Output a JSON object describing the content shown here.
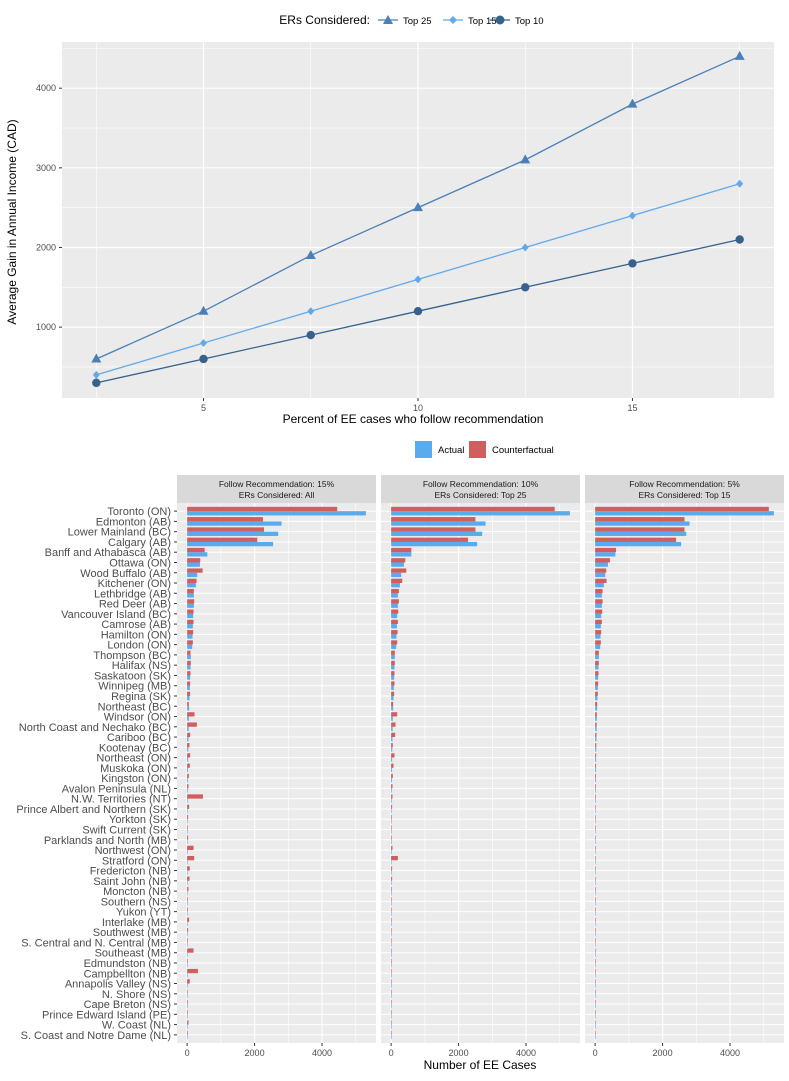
{
  "line_chart": {
    "legend_title": "ERs Considered:",
    "xlabel": "Percent of EE cases who follow recommendation",
    "ylabel": "Average Gain in Annual Income (CAD)"
  },
  "bar_chart": {
    "legend": [
      "Actual",
      "Counterfactual"
    ],
    "xlabel": "Number of EE Cases",
    "panels": [
      {
        "line1": "Follow Recommendation: 15%",
        "line2": "ERs Considered: All"
      },
      {
        "line1": "Follow Recommendation: 10%",
        "line2": "ERs Considered: Top 25"
      },
      {
        "line1": "Follow Recommendation: 5%",
        "line2": "ERs Considered: Top 15"
      }
    ]
  },
  "colors": {
    "top25": "#4a7fb8",
    "top15": "#63a9ea",
    "top10": "#37628c",
    "actual": "#5aabee",
    "counterfactual": "#d05e5e",
    "panel_bg": "#ebebeb",
    "strip_bg": "#d9d9d9"
  },
  "chart_data": [
    {
      "type": "line",
      "title": "",
      "xlabel": "Percent of EE cases who follow recommendation",
      "ylabel": "Average Gain in Annual Income (CAD)",
      "x": [
        2.5,
        5,
        7.5,
        10,
        12.5,
        15,
        17.5
      ],
      "xticks": [
        5,
        10,
        15
      ],
      "yticks": [
        1000,
        2000,
        3000,
        4000
      ],
      "xlim": [
        1.7,
        18.3
      ],
      "ylim": [
        110,
        4580
      ],
      "legend_title": "ERs Considered:",
      "series": [
        {
          "name": "Top 25",
          "marker": "triangle",
          "color": "#4a7fb8",
          "values": [
            600,
            1200,
            1900,
            2500,
            3100,
            3800,
            4400
          ]
        },
        {
          "name": "Top 15",
          "marker": "diamond",
          "color": "#63a9ea",
          "values": [
            400,
            800,
            1200,
            1600,
            2000,
            2400,
            2800
          ]
        },
        {
          "name": "Top 10",
          "marker": "circle",
          "color": "#37628c",
          "values": [
            300,
            600,
            900,
            1200,
            1500,
            1800,
            2100
          ]
        }
      ]
    },
    {
      "type": "bar",
      "orientation": "horizontal",
      "xlabel": "Number of EE Cases",
      "xticks": [
        0,
        2000,
        4000
      ],
      "xlim": [
        -300,
        5600
      ],
      "series_names": [
        "Actual",
        "Counterfactual"
      ],
      "categories": [
        "Toronto (ON)",
        "Edmonton (AB)",
        "Lower Mainland (BC)",
        "Calgary (AB)",
        "Banff and Athabasca (AB)",
        "Ottawa (ON)",
        "Wood Buffalo (AB)",
        "Kitchener (ON)",
        "Lethbridge (AB)",
        "Red Deer (AB)",
        "Vancouver Island (BC)",
        "Camrose (AB)",
        "Hamilton (ON)",
        "London (ON)",
        "Thompson (BC)",
        "Halifax (NS)",
        "Saskatoon (SK)",
        "Winnipeg (MB)",
        "Regina (SK)",
        "Northeast (BC)",
        "Windsor (ON)",
        "North Coast and Nechako (BC)",
        "Cariboo (BC)",
        "Kootenay (BC)",
        "Northeast (ON)",
        "Muskoka (ON)",
        "Kingston (ON)",
        "Avalon Peninsula (NL)",
        "N.W. Territories (NT)",
        "Prince Albert and Northern (SK)",
        "Yorkton (SK)",
        "Swift Current (SK)",
        "Parklands and North (MB)",
        "Northwest (ON)",
        "Stratford (ON)",
        "Fredericton (NB)",
        "Saint John (NB)",
        "Moncton (NB)",
        "Southern (NS)",
        "Yukon (YT)",
        "Interlake (MB)",
        "Southwest (MB)",
        "S. Central and N. Central (MB)",
        "Southeast (MB)",
        "Edmundston (NB)",
        "Campbellton (NB)",
        "Annapolis Valley (NS)",
        "N. Shore (NS)",
        "Cape Breton (NS)",
        "Prince Edward Island (PE)",
        "W. Coast (NL)",
        "S. Coast and Notre Dame (NL)"
      ],
      "actual": [
        5300,
        2800,
        2700,
        2550,
        600,
        380,
        300,
        260,
        200,
        200,
        180,
        170,
        160,
        150,
        110,
        100,
        90,
        80,
        70,
        60,
        50,
        45,
        40,
        35,
        30,
        28,
        25,
        22,
        20,
        18,
        16,
        15,
        14,
        13,
        12,
        11,
        10,
        10,
        9,
        8,
        8,
        7,
        7,
        6,
        6,
        5,
        5,
        5,
        4,
        4,
        3,
        3
      ],
      "panels": [
        {
          "label": "Follow Recommendation: 15% | ERs Considered: All",
          "counterfactual": [
            4450,
            2250,
            2280,
            2080,
            520,
            390,
            460,
            280,
            200,
            210,
            190,
            190,
            180,
            170,
            100,
            110,
            100,
            90,
            90,
            50,
            220,
            290,
            90,
            70,
            90,
            80,
            50,
            40,
            470,
            60,
            30,
            20,
            30,
            190,
            210,
            80,
            70,
            40,
            20,
            20,
            60,
            30,
            20,
            190,
            20,
            320,
            80,
            10,
            20,
            20,
            40,
            20
          ]
        },
        {
          "label": "Follow Recommendation: 10% | ERs Considered: Top 25",
          "counterfactual": [
            4850,
            2500,
            2500,
            2280,
            600,
            420,
            450,
            330,
            230,
            230,
            210,
            200,
            190,
            180,
            110,
            110,
            100,
            100,
            90,
            60,
            180,
            130,
            120,
            50,
            100,
            70,
            50,
            40,
            40,
            30,
            20,
            15,
            20,
            40,
            200,
            30,
            30,
            20,
            10,
            10,
            15,
            10,
            10,
            10,
            10,
            10,
            10,
            5,
            5,
            5,
            5,
            5
          ]
        },
        {
          "label": "Follow Recommendation: 5% | ERs Considered: Top 15",
          "counterfactual": [
            5150,
            2650,
            2650,
            2400,
            620,
            440,
            330,
            340,
            220,
            220,
            210,
            200,
            180,
            170,
            110,
            110,
            100,
            90,
            80,
            60,
            50,
            45,
            40,
            35,
            30,
            28,
            25,
            22,
            20,
            18,
            16,
            15,
            14,
            13,
            12,
            11,
            10,
            10,
            9,
            8,
            8,
            7,
            7,
            6,
            6,
            5,
            5,
            5,
            4,
            4,
            3,
            3
          ]
        }
      ]
    }
  ]
}
